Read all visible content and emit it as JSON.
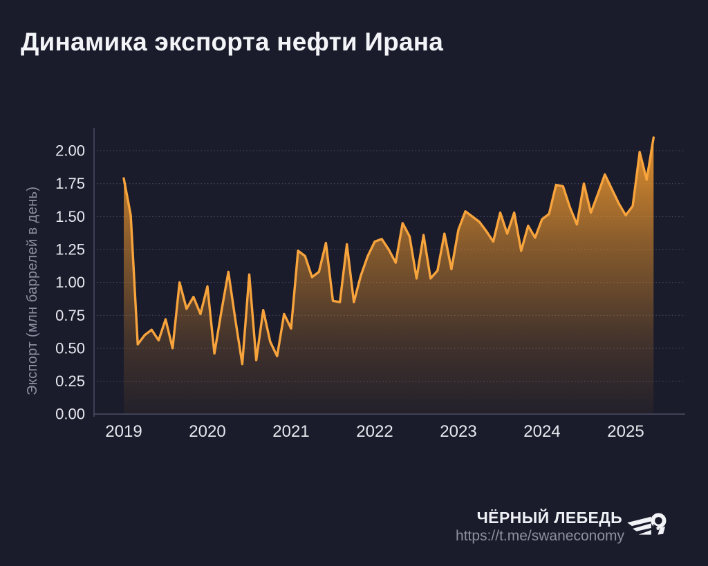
{
  "title": "Динамика экспорта нефти Ирана",
  "footer": {
    "brand": "ЧЁРНЫЙ ЛЕБЕДЬ",
    "url": "https://t.me/swaneconomy",
    "logo_icon": "swan-icon"
  },
  "colors": {
    "background": "#1a1b2b",
    "line": "#f8a43d",
    "area": "#f49b2e",
    "tick_text": "#e7e8ee",
    "muted_text": "#8e90a2",
    "spine": "#4a4b61",
    "grid": "#9a9cb8"
  },
  "chart_data": {
    "type": "area",
    "title": "Динамика экспорта нефти Ирана",
    "xlabel": "",
    "ylabel": "Экспорт (млн баррелей в день)",
    "x_tick_labels": [
      "2019",
      "2020",
      "2021",
      "2022",
      "2023",
      "2024",
      "2025"
    ],
    "y_ticks": [
      0.0,
      0.25,
      0.5,
      0.75,
      1.0,
      1.25,
      1.5,
      1.75,
      2.0
    ],
    "y_tick_labels": [
      "0.00",
      "0.25",
      "0.50",
      "0.75",
      "1.00",
      "1.25",
      "1.50",
      "1.75",
      "2.00"
    ],
    "ylim": [
      0,
      2.15
    ],
    "grid": "horizontal-dotted",
    "legend": "none",
    "frequency": "monthly",
    "start": "2019-01",
    "points_per_year": 12,
    "values": [
      1.79,
      1.51,
      0.53,
      0.6,
      0.64,
      0.56,
      0.72,
      0.5,
      1.0,
      0.8,
      0.89,
      0.76,
      0.97,
      0.46,
      0.78,
      1.08,
      0.72,
      0.38,
      1.06,
      0.41,
      0.79,
      0.55,
      0.44,
      0.76,
      0.65,
      1.24,
      1.2,
      1.04,
      1.08,
      1.3,
      0.86,
      0.85,
      1.29,
      0.85,
      1.05,
      1.2,
      1.31,
      1.33,
      1.25,
      1.15,
      1.45,
      1.35,
      1.03,
      1.36,
      1.03,
      1.09,
      1.37,
      1.1,
      1.4,
      1.54,
      1.5,
      1.46,
      1.39,
      1.31,
      1.53,
      1.37,
      1.53,
      1.24,
      1.43,
      1.34,
      1.48,
      1.52,
      1.74,
      1.73,
      1.57,
      1.44,
      1.75,
      1.53,
      1.67,
      1.82,
      1.71,
      1.6,
      1.51,
      1.58,
      1.99,
      1.78,
      2.1
    ]
  }
}
